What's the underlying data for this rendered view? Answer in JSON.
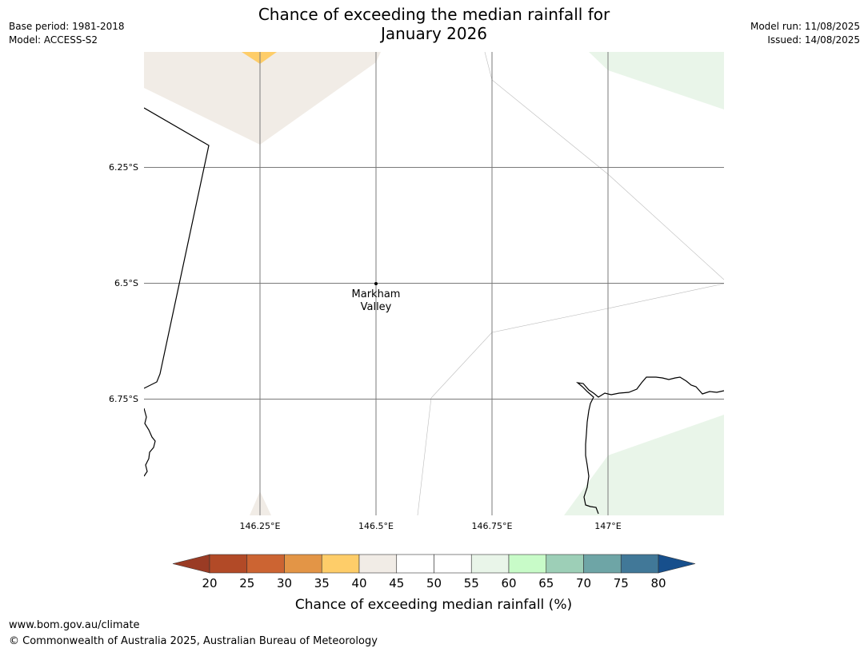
{
  "header": {
    "title_line1": "Chance of exceeding the median rainfall for",
    "title_line2": "January 2026",
    "base_period": "Base period: 1981-2018",
    "model": "Model: ACCESS-S2",
    "model_run": "Model run: 11/08/2025",
    "issued": "Issued: 14/08/2025"
  },
  "map": {
    "lat_labels": [
      "6.25°S",
      "6.5°S",
      "6.75°S"
    ],
    "lon_labels": [
      "146.25°E",
      "146.5°E",
      "146.75°E",
      "147°E"
    ],
    "place": {
      "line1": "Markham",
      "line2": "Valley"
    },
    "zones": [
      {
        "band": "40-45",
        "color": "#f1ece6"
      },
      {
        "band": "35-40",
        "color": "#fecd69"
      },
      {
        "band": "55-60",
        "color": "#e9f5e9"
      }
    ]
  },
  "legend": {
    "title": "Chance of exceeding median rainfall (%)",
    "ticks": [
      "20",
      "25",
      "30",
      "35",
      "40",
      "45",
      "50",
      "55",
      "60",
      "65",
      "70",
      "75",
      "80"
    ],
    "low_extend_color": "#9a3b24",
    "high_extend_color": "#174f8c",
    "colors": [
      "#b24a27",
      "#cc6432",
      "#e39546",
      "#fecd69",
      "#f1ece6",
      "#ffffff",
      "#ffffff",
      "#e9f5e9",
      "#c8fbc8",
      "#9dcfb7",
      "#6ea5a6",
      "#417898"
    ]
  },
  "footer": {
    "url": "www.bom.gov.au/climate",
    "copyright": "© Commonwealth of Australia 2025, Australian Bureau of Meteorology"
  }
}
